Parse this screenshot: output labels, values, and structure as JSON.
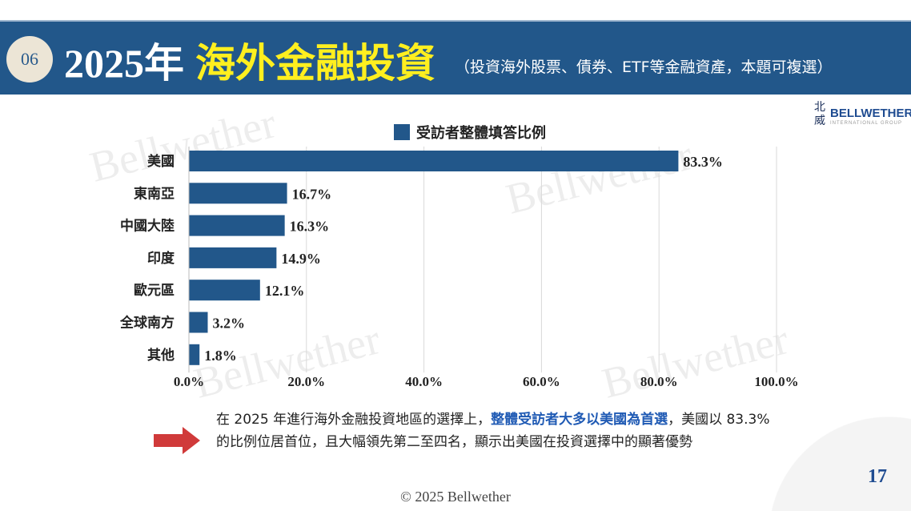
{
  "header": {
    "badge": "06",
    "year": "2025年",
    "title": "海外金融投資",
    "subtitle": "（投資海外股票、債券、ETF等金融資產，本題可複選）"
  },
  "logo": {
    "cn": "北威",
    "en": "BELLWETHER",
    "sub": "INTERNATIONAL GROUP"
  },
  "watermark": "Bellwether",
  "chart_data": {
    "type": "bar",
    "orientation": "horizontal",
    "legend": "受訪者整體填答比例",
    "legend_position": "top",
    "categories": [
      "美國",
      "東南亞",
      "中國大陸",
      "印度",
      "歐元區",
      "全球南方",
      "其他"
    ],
    "values": [
      83.3,
      16.7,
      16.3,
      14.9,
      12.1,
      3.2,
      1.8
    ],
    "value_labels": [
      "83.3%",
      "16.7%",
      "16.3%",
      "14.9%",
      "12.1%",
      "3.2%",
      "1.8%"
    ],
    "xlim": [
      0,
      100
    ],
    "xticks": [
      "0.0%",
      "20.0%",
      "40.0%",
      "60.0%",
      "80.0%",
      "100.0%"
    ],
    "grid": true,
    "color": "#22578a"
  },
  "note": {
    "p1": "在 2025 年進行海外金融投資地區的選擇上，",
    "hl": "整體受訪者大多以美國為首選",
    "p2": "，美國以 83.3% 的比例位居首位，且大幅領先第二至四名，顯示出美國在投資選擇中的顯著優勢"
  },
  "footer": {
    "copyright": "© 2025 Bellwether",
    "page": "17"
  }
}
